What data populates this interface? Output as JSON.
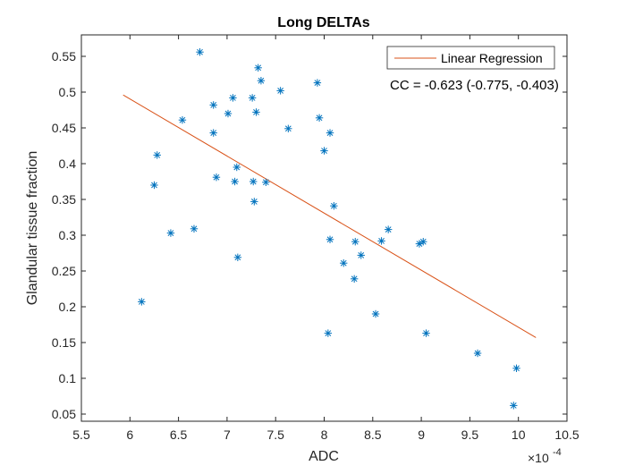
{
  "chart_data": {
    "type": "scatter",
    "title": "Long DELTAs",
    "xlabel": "ADC",
    "ylabel": "Glandular tissue fraction",
    "x_exponent_base": "×10",
    "x_exponent_power": "-4",
    "xlim": [
      5.5,
      10.5
    ],
    "ylim": [
      0.04,
      0.58
    ],
    "xticks": [
      5.5,
      6,
      6.5,
      7,
      7.5,
      8,
      8.5,
      9,
      9.5,
      10,
      10.5
    ],
    "xtick_labels": [
      "5.5",
      "6",
      "6.5",
      "7",
      "7.5",
      "8",
      "8.5",
      "9",
      "9.5",
      "10",
      "10.5"
    ],
    "yticks": [
      0.05,
      0.1,
      0.15,
      0.2,
      0.25,
      0.3,
      0.35,
      0.4,
      0.45,
      0.5,
      0.55
    ],
    "ytick_labels": [
      "0.05",
      "0.1",
      "0.15",
      "0.2",
      "0.25",
      "0.3",
      "0.35",
      "0.4",
      "0.45",
      "0.5",
      "0.55"
    ],
    "grid": false,
    "legend_position": "top-right",
    "colors": {
      "points": "#0072BD",
      "regression": "#D95319"
    },
    "series": [
      {
        "marker": "asterisk",
        "points": [
          [
            6.12,
            0.207
          ],
          [
            6.25,
            0.37
          ],
          [
            6.28,
            0.412
          ],
          [
            6.42,
            0.303
          ],
          [
            6.54,
            0.461
          ],
          [
            6.66,
            0.309
          ],
          [
            6.72,
            0.556
          ],
          [
            6.86,
            0.482
          ],
          [
            6.86,
            0.443
          ],
          [
            6.89,
            0.381
          ],
          [
            7.01,
            0.47
          ],
          [
            7.06,
            0.492
          ],
          [
            7.08,
            0.375
          ],
          [
            7.1,
            0.395
          ],
          [
            7.11,
            0.269
          ],
          [
            7.26,
            0.492
          ],
          [
            7.27,
            0.375
          ],
          [
            7.28,
            0.347
          ],
          [
            7.3,
            0.472
          ],
          [
            7.32,
            0.534
          ],
          [
            7.35,
            0.516
          ],
          [
            7.4,
            0.374
          ],
          [
            7.55,
            0.502
          ],
          [
            7.63,
            0.449
          ],
          [
            7.93,
            0.513
          ],
          [
            7.95,
            0.464
          ],
          [
            8.0,
            0.418
          ],
          [
            8.04,
            0.163
          ],
          [
            8.06,
            0.443
          ],
          [
            8.06,
            0.294
          ],
          [
            8.1,
            0.341
          ],
          [
            8.2,
            0.261
          ],
          [
            8.31,
            0.239
          ],
          [
            8.32,
            0.291
          ],
          [
            8.38,
            0.272
          ],
          [
            8.53,
            0.19
          ],
          [
            8.59,
            0.292
          ],
          [
            8.66,
            0.308
          ],
          [
            8.98,
            0.288
          ],
          [
            9.02,
            0.291
          ],
          [
            9.05,
            0.163
          ],
          [
            9.58,
            0.135
          ],
          [
            9.95,
            0.062
          ],
          [
            9.98,
            0.114
          ]
        ]
      },
      {
        "name": "Linear Regression",
        "type": "line",
        "x": [
          5.93,
          10.18
        ],
        "y": [
          0.496,
          0.157
        ]
      }
    ],
    "annotation": "CC = -0.623 (-0.775, -0.403)"
  }
}
